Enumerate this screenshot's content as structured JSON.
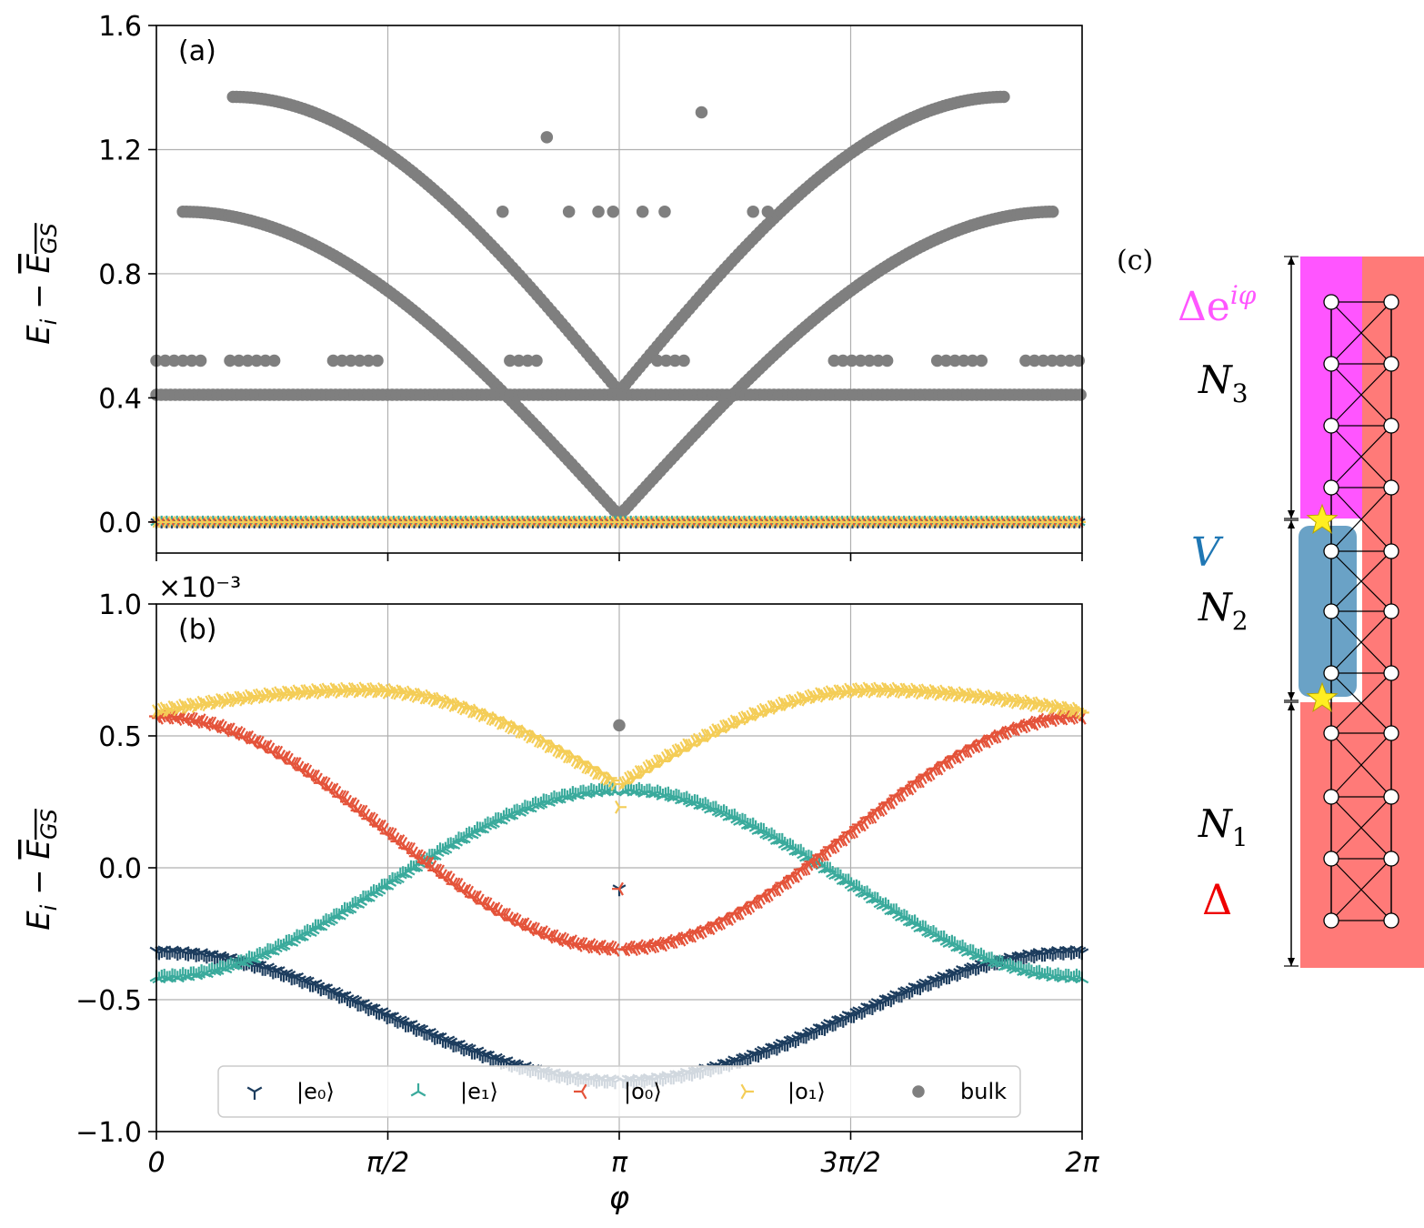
{
  "colors": {
    "e0": "#1d3d5e",
    "e1": "#3aaa9c",
    "o0": "#e4533a",
    "o1": "#f4cd57",
    "bulk": "#7f7f7f",
    "pairing_phase": "#ff55ff",
    "pairing": "#ff7a78",
    "potential_region": "#6aa2c6",
    "potential_label": "#1f77b4",
    "delta_label": "#ee0000",
    "star": "#ffee22"
  },
  "chart_data": [
    {
      "type": "scatter",
      "panel_label": "(a)",
      "xlabel": "",
      "ylabel": "E_i − ̅E_GS",
      "xlim": [
        0,
        6.2832
      ],
      "ylim": [
        -0.1,
        1.6
      ],
      "x_ticks": [
        0,
        1.5708,
        3.1416,
        4.7124,
        6.2832
      ],
      "y_ticks": [
        0.0,
        0.4,
        0.8,
        1.2,
        1.6
      ],
      "y_tick_labels": [
        "0.0",
        "0.4",
        "0.8",
        "1.2",
        "1.6"
      ],
      "grid": true,
      "series": [
        {
          "name": "bulk",
          "key": "bulk",
          "marker": "circle",
          "curves": [
            {
              "kind": "vee",
              "x0": 0.5,
              "x1": 6.25,
              "y_end": 1.0,
              "y_min": 0.02
            },
            {
              "kind": "vee",
              "x0": 0.5,
              "x1": 6.25,
              "y_end": 1.37,
              "y_min": 0.42,
              "xstart": 0.52,
              "xend": 5.76
            },
            {
              "kind": "flat",
              "y": 0.41
            },
            {
              "kind": "flat",
              "y": 0.52,
              "x_ranges": [
                [
                  0,
                  0.3
                ],
                [
                  0.5,
                  0.8
                ],
                [
                  1.2,
                  1.5
                ],
                [
                  2.4,
                  2.6
                ],
                [
                  3.4,
                  3.6
                ],
                [
                  4.6,
                  5.0
                ],
                [
                  5.3,
                  5.6
                ],
                [
                  5.9,
                  6.28
                ]
              ]
            }
          ],
          "points": [
            [
              2.65,
              1.24
            ],
            [
              2.35,
              1.0
            ],
            [
              2.8,
              1.0
            ],
            [
              3.0,
              1.0
            ],
            [
              3.1,
              1.0
            ],
            [
              3.3,
              1.0
            ],
            [
              3.45,
              1.0
            ],
            [
              4.05,
              1.0
            ],
            [
              4.15,
              1.0
            ],
            [
              3.7,
              1.32
            ]
          ]
        },
        {
          "name": "|e₀⟩",
          "key": "e0",
          "marker": "tri_down",
          "flat_y": 0.0
        },
        {
          "name": "|e₁⟩",
          "key": "e1",
          "marker": "tri_up",
          "flat_y": 0.0
        },
        {
          "name": "|o₀⟩",
          "key": "o0",
          "marker": "tri_left",
          "flat_y": 0.0
        },
        {
          "name": "|o₁⟩",
          "key": "o1",
          "marker": "tri_right",
          "flat_y": 0.0
        }
      ]
    },
    {
      "type": "scatter",
      "panel_label": "(b)",
      "offset_label": "×10⁻³",
      "xlabel": "φ",
      "ylabel": "E_i − ̅E_GS",
      "xlim": [
        0,
        6.2832
      ],
      "ylim": [
        -1.0,
        1.0
      ],
      "y_unit_scale": 0.001,
      "x_ticks": [
        0,
        1.5708,
        3.1416,
        4.7124,
        6.2832
      ],
      "x_tick_labels": [
        "0",
        "π/2",
        "π",
        "3π/2",
        "2π"
      ],
      "y_ticks": [
        -1.0,
        -0.5,
        0.0,
        0.5,
        1.0
      ],
      "y_tick_labels": [
        "−1.0",
        "−0.5",
        "0.0",
        "0.5",
        "1.0"
      ],
      "grid": true,
      "legend_position": "bottom",
      "series": [
        {
          "name": "|e₀⟩",
          "key": "e0",
          "marker": "tri_down",
          "model": "cos",
          "a": -0.555,
          "b": 0.245
        },
        {
          "name": "|e₁⟩",
          "key": "e1",
          "marker": "tri_up",
          "model": "cos",
          "a": -0.055,
          "b": -0.355
        },
        {
          "name": "|o₀⟩",
          "key": "o0",
          "marker": "tri_left",
          "model": "cos",
          "a": 0.14,
          "b": 0.44
        },
        {
          "name": "|o₁⟩",
          "key": "o1",
          "marker": "tri_right",
          "model": "arch",
          "ends": 0.6,
          "peak": 0.68,
          "mid": 0.32
        },
        {
          "name": "bulk",
          "key": "bulk",
          "marker": "circle",
          "points": [
            [
              3.1416,
              0.54
            ]
          ]
        }
      ],
      "outliers": [
        [
          3.1416,
          0.23,
          "o1"
        ],
        [
          3.1416,
          -0.08,
          "e0"
        ],
        [
          3.1416,
          -0.08,
          "o0"
        ]
      ]
    }
  ],
  "legend": {
    "items": [
      {
        "key": "e0",
        "label": "|e₀⟩",
        "marker": "tri_down"
      },
      {
        "key": "e1",
        "label": "|e₁⟩",
        "marker": "tri_up"
      },
      {
        "key": "o0",
        "label": "|o₀⟩",
        "marker": "tri_left"
      },
      {
        "key": "o1",
        "label": "|o₁⟩",
        "marker": "tri_right"
      },
      {
        "key": "bulk",
        "label": "bulk",
        "marker": "circle"
      }
    ]
  },
  "schematic": {
    "panel_label": "(c)",
    "regions": [
      {
        "label": "N₃",
        "pairing_label": "Δe^{iφ}"
      },
      {
        "label": "N₂",
        "pairing_label": "V"
      },
      {
        "label": "N₁",
        "pairing_label": "Δ"
      }
    ],
    "top_label_base": "Δe",
    "top_label_sup": "iφ",
    "v_label": "V",
    "n3_base": "N",
    "n3_sub": "3",
    "n2_base": "N",
    "n2_sub": "2",
    "n1_base": "N",
    "n1_sub": "1",
    "delta_label": "Δ"
  }
}
